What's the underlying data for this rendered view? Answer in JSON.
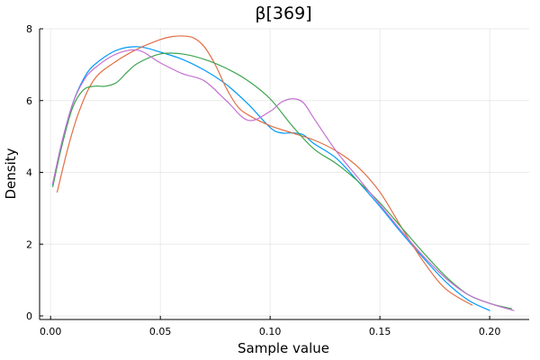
{
  "chart_data": {
    "type": "line",
    "title": "β[369]",
    "xlabel": "Sample value",
    "ylabel": "Density",
    "xlim": [
      -0.005,
      0.218
    ],
    "ylim": [
      -0.1,
      8.0
    ],
    "x_ticks": [
      0.0,
      0.05,
      0.1,
      0.15,
      0.2
    ],
    "x_tick_labels": [
      "0.00",
      "0.05",
      "0.10",
      "0.15",
      "0.20"
    ],
    "y_ticks": [
      0,
      2,
      4,
      6,
      8
    ],
    "y_tick_labels": [
      "0",
      "2",
      "4",
      "6",
      "8"
    ],
    "grid": true,
    "legend": "none",
    "series": [
      {
        "color": "#009AFA",
        "x": [
          0.001,
          0.005,
          0.01,
          0.015,
          0.02,
          0.03,
          0.04,
          0.05,
          0.06,
          0.07,
          0.08,
          0.09,
          0.1,
          0.105,
          0.11,
          0.115,
          0.12,
          0.13,
          0.14,
          0.15,
          0.16,
          0.17,
          0.18,
          0.19,
          0.2
        ],
        "y": [
          3.65,
          4.8,
          5.9,
          6.6,
          7.0,
          7.4,
          7.5,
          7.35,
          7.15,
          6.85,
          6.45,
          5.9,
          5.25,
          5.1,
          5.1,
          5.05,
          4.8,
          4.4,
          3.75,
          3.05,
          2.3,
          1.6,
          0.95,
          0.45,
          0.15
        ]
      },
      {
        "color": "#E26F46",
        "x": [
          0.003,
          0.008,
          0.013,
          0.02,
          0.03,
          0.04,
          0.05,
          0.055,
          0.06,
          0.065,
          0.07,
          0.075,
          0.08,
          0.085,
          0.09,
          0.1,
          0.11,
          0.12,
          0.13,
          0.14,
          0.15,
          0.16,
          0.17,
          0.18,
          0.192
        ],
        "y": [
          3.45,
          4.7,
          5.7,
          6.6,
          7.1,
          7.45,
          7.7,
          7.78,
          7.8,
          7.75,
          7.5,
          7.0,
          6.35,
          5.85,
          5.6,
          5.3,
          5.1,
          4.9,
          4.6,
          4.15,
          3.45,
          2.45,
          1.5,
          0.75,
          0.3
        ]
      },
      {
        "color": "#3EA44E",
        "x": [
          0.001,
          0.005,
          0.01,
          0.015,
          0.02,
          0.025,
          0.03,
          0.035,
          0.04,
          0.05,
          0.06,
          0.07,
          0.08,
          0.09,
          0.1,
          0.11,
          0.12,
          0.13,
          0.14,
          0.15,
          0.16,
          0.17,
          0.18,
          0.19,
          0.2,
          0.21
        ],
        "y": [
          3.6,
          4.7,
          5.8,
          6.3,
          6.4,
          6.4,
          6.5,
          6.8,
          7.05,
          7.3,
          7.3,
          7.15,
          6.9,
          6.55,
          6.05,
          5.3,
          4.65,
          4.25,
          3.75,
          3.15,
          2.45,
          1.75,
          1.1,
          0.6,
          0.35,
          0.2
        ]
      },
      {
        "color": "#C371D2",
        "x": [
          0.001,
          0.005,
          0.01,
          0.015,
          0.02,
          0.03,
          0.04,
          0.05,
          0.06,
          0.07,
          0.08,
          0.09,
          0.1,
          0.105,
          0.11,
          0.115,
          0.12,
          0.13,
          0.14,
          0.15,
          0.16,
          0.17,
          0.18,
          0.19,
          0.2,
          0.211
        ],
        "y": [
          3.7,
          4.8,
          5.9,
          6.55,
          6.9,
          7.3,
          7.4,
          7.05,
          6.75,
          6.55,
          6.0,
          5.45,
          5.7,
          5.95,
          6.05,
          5.95,
          5.5,
          4.6,
          3.85,
          3.1,
          2.35,
          1.65,
          1.05,
          0.6,
          0.35,
          0.15
        ]
      }
    ]
  }
}
